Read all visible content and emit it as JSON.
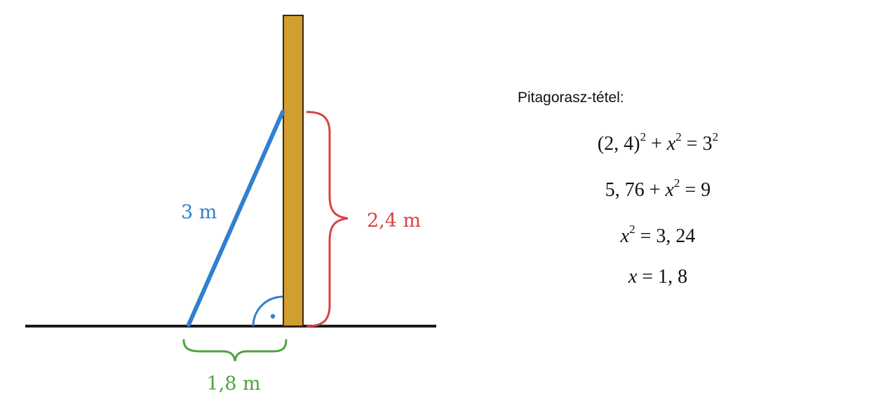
{
  "diagram": {
    "ladder_label": "3 m",
    "height_label": "2,4 m",
    "base_label": "1,8 m",
    "right_angle_mark": "·"
  },
  "explanation": {
    "title": "Pitagorasz-tétel:",
    "equations": [
      {
        "lhs": "(2, 4)",
        "lhs_exp": "2",
        "plus": " + ",
        "var": "x",
        "var_exp": "2",
        "eq": " = ",
        "rhs": "3",
        "rhs_exp": "2"
      },
      {
        "lhs": "5, 76",
        "plus": " + ",
        "var": "x",
        "var_exp": "2",
        "eq": " = ",
        "rhs": "9"
      },
      {
        "var": "x",
        "var_exp": "2",
        "eq": " = ",
        "rhs": "3, 24"
      },
      {
        "var": "x",
        "eq": " = ",
        "rhs": "1, 8"
      }
    ]
  },
  "colors": {
    "ladder": "#2f80d1",
    "height": "#d84343",
    "base": "#4ea33e",
    "pole_fill": "#d39e30",
    "pole_stroke": "#3a2a10",
    "ground": "#1a1a1a"
  }
}
